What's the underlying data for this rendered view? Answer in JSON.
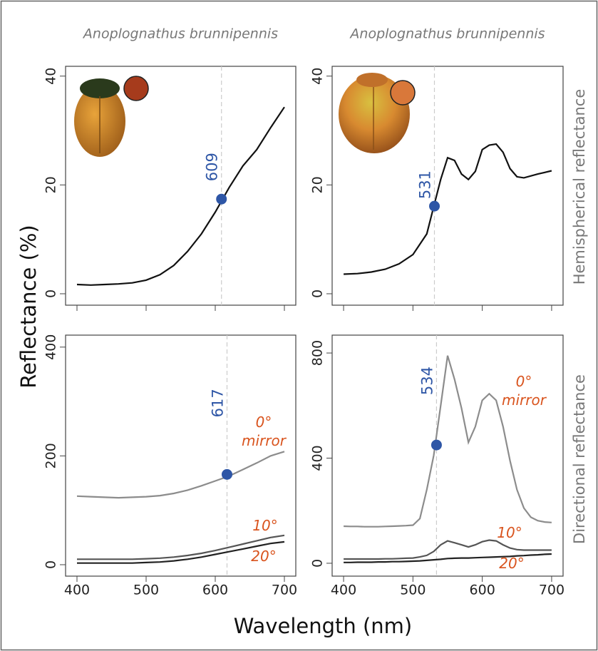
{
  "figure": {
    "ylabel": "Reflectance (%)",
    "xlabel": "Wavelength (nm)",
    "row_labels": [
      "Hemispherical reflectance",
      "Directional reflectance"
    ]
  },
  "chart_data": [
    {
      "type": "line",
      "title": "Anoplognathus brunnipennis",
      "x": [
        400,
        420,
        440,
        460,
        480,
        500,
        520,
        540,
        560,
        580,
        600,
        620,
        640,
        660,
        680,
        700
      ],
      "values": [
        1.7,
        1.6,
        1.7,
        1.8,
        2.0,
        2.5,
        3.5,
        5.2,
        7.8,
        11,
        15,
        19.5,
        23.5,
        26.5,
        30.5,
        34.3
      ],
      "color": "#111111",
      "marker": {
        "x": 609,
        "y": 17.4
      },
      "xlim": [
        383.5,
        716.5
      ],
      "ylim": [
        -2.1,
        41.8
      ],
      "xticks": [
        400,
        500,
        600,
        700
      ],
      "xtick_labels": false,
      "yticks": [
        0,
        20,
        40
      ]
    },
    {
      "type": "line",
      "title": "Anoplognathus brunnipennis",
      "x": [
        400,
        420,
        440,
        460,
        480,
        500,
        520,
        530,
        540,
        550,
        560,
        570,
        580,
        590,
        600,
        610,
        620,
        630,
        640,
        650,
        660,
        680,
        700
      ],
      "values": [
        3.6,
        3.7,
        4.0,
        4.5,
        5.5,
        7.2,
        11,
        16,
        21,
        25,
        24.5,
        22,
        21,
        22.5,
        26.5,
        27.3,
        27.5,
        26,
        23,
        21.5,
        21.3,
        22,
        22.6
      ],
      "color": "#111111",
      "marker": {
        "x": 531,
        "y": 16.1
      },
      "xlim": [
        383.5,
        716.5
      ],
      "ylim": [
        -2.1,
        41.8
      ],
      "xticks": [
        400,
        500,
        600,
        700
      ],
      "xtick_labels": false,
      "yticks": [
        0,
        20,
        40
      ]
    },
    {
      "type": "line",
      "x": [
        400,
        420,
        440,
        460,
        480,
        500,
        520,
        540,
        560,
        580,
        600,
        620,
        640,
        660,
        680,
        700
      ],
      "series": [
        {
          "name": "0° mirror",
          "color": "#8c8c8c",
          "values": [
            126,
            125,
            124,
            123,
            124,
            125,
            127,
            131,
            137,
            145,
            154,
            163,
            175,
            187,
            200,
            208
          ]
        },
        {
          "name": "10°",
          "color": "#555555",
          "values": [
            10,
            10,
            10,
            10,
            10,
            11,
            12,
            14,
            17,
            21,
            26,
            32,
            38,
            44,
            50,
            54
          ]
        },
        {
          "name": "20°",
          "color": "#222222",
          "values": [
            3,
            3,
            3,
            3,
            3,
            4,
            5,
            7,
            10,
            14,
            19,
            24,
            29,
            34,
            39,
            42
          ]
        }
      ],
      "marker": {
        "x": 617,
        "y": 166
      },
      "xlim": [
        383.5,
        716.5
      ],
      "ylim": [
        -21,
        422
      ],
      "xticks": [
        400,
        500,
        600,
        700
      ],
      "yticks": [
        0,
        200,
        400
      ]
    },
    {
      "type": "line",
      "x": [
        400,
        410,
        420,
        430,
        440,
        450,
        460,
        470,
        480,
        490,
        500,
        510,
        520,
        530,
        540,
        550,
        560,
        570,
        580,
        590,
        600,
        610,
        620,
        630,
        640,
        650,
        660,
        670,
        680,
        690,
        700
      ],
      "series": [
        {
          "name": "0° mirror",
          "color": "#8c8c8c",
          "values": [
            141,
            140,
            140,
            139,
            139,
            139,
            140,
            141,
            142,
            143,
            145,
            170,
            280,
            410,
            600,
            790,
            700,
            590,
            460,
            520,
            620,
            645,
            620,
            520,
            390,
            280,
            210,
            175,
            162,
            157,
            155
          ]
        },
        {
          "name": "10°",
          "color": "#555555",
          "values": [
            16,
            16,
            16,
            16,
            16,
            16,
            17,
            17,
            18,
            19,
            20,
            24,
            30,
            45,
            70,
            85,
            78,
            70,
            62,
            70,
            82,
            88,
            85,
            70,
            58,
            52,
            50,
            50,
            50,
            50,
            50
          ]
        },
        {
          "name": "20°",
          "color": "#222222",
          "values": [
            3,
            3,
            4,
            4,
            4,
            5,
            5,
            6,
            6,
            7,
            8,
            9,
            11,
            13,
            15,
            18,
            19,
            20,
            20,
            21,
            22,
            23,
            24,
            25,
            26,
            28,
            29,
            31,
            32,
            34,
            35
          ]
        }
      ],
      "marker": {
        "x": 534,
        "y": 450
      },
      "xlim": [
        383.5,
        716.5
      ],
      "ylim": [
        -49,
        868
      ],
      "xticks": [
        400,
        500,
        600,
        700
      ],
      "yticks": [
        0,
        400,
        800
      ]
    }
  ]
}
